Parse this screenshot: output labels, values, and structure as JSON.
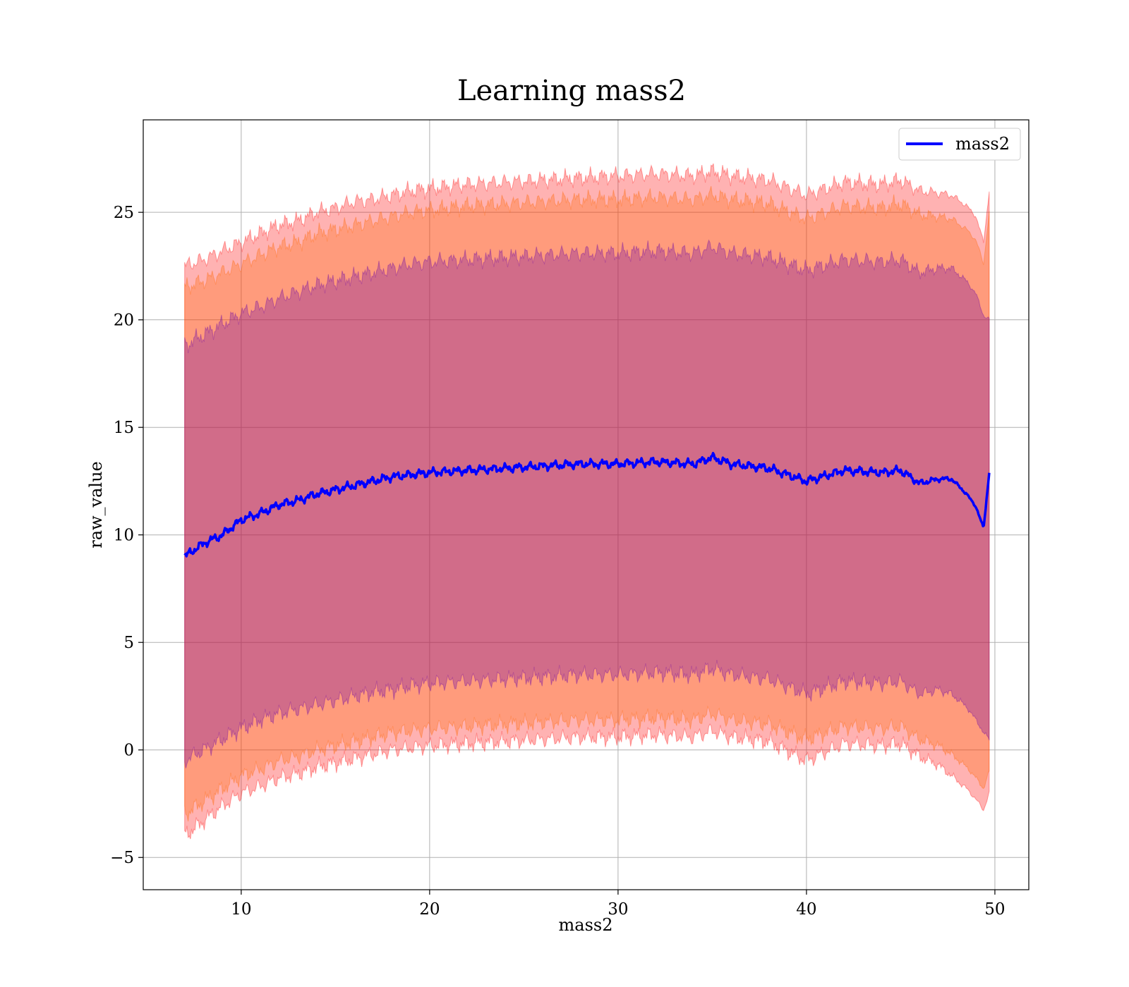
{
  "chart_data": {
    "type": "area",
    "title": "Learning mass2",
    "xlabel": "mass2",
    "ylabel": "raw_value",
    "xlim": [
      4.8,
      51.8
    ],
    "ylim": [
      -6.5,
      29.3
    ],
    "x_ticks": [
      10,
      20,
      30,
      40,
      50
    ],
    "y_ticks": [
      -5,
      0,
      5,
      10,
      15,
      20,
      25
    ],
    "x_tick_labels": [
      "10",
      "20",
      "30",
      "40",
      "50"
    ],
    "y_tick_labels": [
      "−5",
      "0",
      "5",
      "10",
      "15",
      "20",
      "25"
    ],
    "grid": true,
    "legend": {
      "position": "top-right",
      "entries": [
        "mass2"
      ]
    },
    "series": [
      {
        "name": "mass2",
        "color": "#0000ff",
        "x": [
          7,
          8,
          9,
          10,
          11,
          12,
          13,
          14,
          15,
          16,
          17,
          18,
          19,
          20,
          22,
          24,
          26,
          28,
          30,
          32,
          34,
          35,
          36,
          38,
          40,
          42,
          44,
          45,
          46,
          47,
          47.7,
          48.5,
          49,
          49.4,
          49.7
        ],
        "values": [
          9.0,
          9.6,
          10.0,
          10.7,
          11.0,
          11.4,
          11.6,
          11.9,
          12.1,
          12.3,
          12.5,
          12.7,
          12.8,
          12.9,
          13.0,
          13.1,
          13.2,
          13.3,
          13.3,
          13.4,
          13.3,
          13.6,
          13.3,
          13.1,
          12.5,
          13.0,
          12.9,
          13.0,
          12.4,
          12.6,
          12.6,
          11.9,
          11.3,
          10.3,
          12.9
        ]
      }
    ],
    "bands": [
      {
        "color": "#ff0000",
        "opacity": 0.3,
        "x": [
          7,
          8,
          9,
          10,
          11,
          12,
          13,
          14,
          15,
          16,
          17,
          18,
          19,
          20,
          22,
          24,
          26,
          28,
          30,
          32,
          34,
          35,
          36,
          38,
          40,
          42,
          44,
          45,
          46,
          47,
          47.7,
          48.5,
          49,
          49.4,
          49.7
        ],
        "lower": [
          -4.0,
          -3.3,
          -2.6,
          -2.0,
          -1.7,
          -1.3,
          -1.1,
          -0.8,
          -0.6,
          -0.4,
          -0.2,
          0.0,
          0.1,
          0.2,
          0.3,
          0.4,
          0.5,
          0.6,
          0.6,
          0.7,
          0.6,
          0.9,
          0.6,
          0.4,
          -0.5,
          0.3,
          0.2,
          0.3,
          -0.3,
          -0.7,
          -1.2,
          -1.8,
          -2.3,
          -2.8,
          -2.0
        ],
        "upper": [
          22.5,
          22.8,
          23.2,
          23.6,
          24.0,
          24.4,
          24.6,
          25.0,
          25.2,
          25.5,
          25.6,
          25.8,
          26.0,
          26.1,
          26.3,
          26.4,
          26.5,
          26.6,
          26.7,
          26.8,
          26.7,
          26.9,
          26.7,
          26.5,
          25.8,
          26.4,
          26.3,
          26.5,
          26.0,
          25.9,
          25.8,
          25.3,
          24.8,
          23.6,
          26.0
        ]
      },
      {
        "color": "#ff6600",
        "opacity": 0.3,
        "x": [
          7,
          8,
          9,
          10,
          11,
          12,
          13,
          14,
          15,
          16,
          17,
          18,
          19,
          20,
          22,
          24,
          26,
          28,
          30,
          32,
          34,
          35,
          36,
          38,
          40,
          42,
          44,
          45,
          46,
          47,
          47.7,
          48.5,
          49,
          49.4,
          49.7
        ],
        "lower": [
          -3.0,
          -2.4,
          -1.8,
          -1.2,
          -0.9,
          -0.5,
          -0.3,
          0.0,
          0.2,
          0.4,
          0.6,
          0.8,
          0.9,
          1.0,
          1.1,
          1.2,
          1.3,
          1.4,
          1.4,
          1.5,
          1.4,
          1.7,
          1.4,
          1.2,
          0.5,
          1.1,
          1.0,
          1.1,
          0.5,
          0.2,
          -0.2,
          -0.8,
          -1.3,
          -1.8,
          -1.0
        ],
        "upper": [
          21.5,
          21.8,
          22.2,
          22.6,
          23.0,
          23.4,
          23.6,
          24.0,
          24.2,
          24.4,
          24.6,
          24.8,
          25.0,
          25.1,
          25.3,
          25.4,
          25.5,
          25.6,
          25.6,
          25.7,
          25.6,
          25.8,
          25.6,
          25.4,
          24.7,
          25.3,
          25.2,
          25.4,
          24.9,
          24.8,
          24.7,
          24.2,
          23.7,
          22.6,
          25.0
        ]
      },
      {
        "color": "#6600aa",
        "opacity": 0.3,
        "x": [
          7,
          8,
          9,
          10,
          11,
          12,
          13,
          14,
          15,
          16,
          17,
          18,
          19,
          20,
          22,
          24,
          26,
          28,
          30,
          32,
          34,
          35,
          36,
          38,
          40,
          42,
          44,
          45,
          46,
          47,
          47.7,
          48.5,
          49,
          49.4,
          49.7
        ],
        "lower": [
          -0.5,
          0.0,
          0.5,
          1.0,
          1.4,
          1.7,
          1.9,
          2.1,
          2.3,
          2.5,
          2.7,
          2.8,
          3.0,
          3.1,
          3.2,
          3.3,
          3.4,
          3.5,
          3.5,
          3.6,
          3.5,
          3.8,
          3.5,
          3.3,
          2.6,
          3.2,
          3.1,
          3.2,
          2.6,
          2.8,
          2.6,
          2.0,
          1.4,
          0.8,
          0.5
        ],
        "upper": [
          18.8,
          19.3,
          19.8,
          20.3,
          20.6,
          21.0,
          21.3,
          21.6,
          21.8,
          22.0,
          22.2,
          22.4,
          22.6,
          22.7,
          22.8,
          22.9,
          23.0,
          23.1,
          23.1,
          23.2,
          23.1,
          23.4,
          23.1,
          22.9,
          22.3,
          22.8,
          22.7,
          22.8,
          22.2,
          22.4,
          22.4,
          21.8,
          21.2,
          20.2,
          20.0
        ]
      }
    ]
  }
}
